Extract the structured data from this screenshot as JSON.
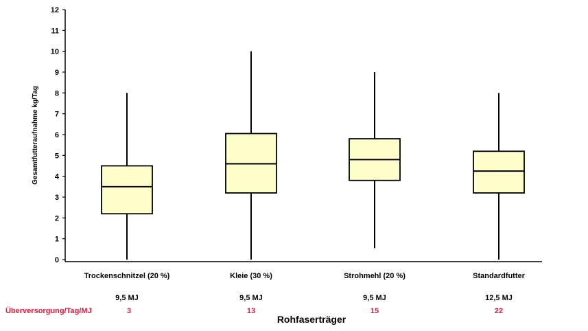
{
  "chart_data": {
    "type": "boxplot",
    "title": "",
    "xlabel": "Rohfaserträger",
    "ylabel": "Gesamtfutteraufnahme kg/Tag",
    "ylim": [
      0,
      12
    ],
    "yticks": [
      0,
      1,
      2,
      3,
      4,
      5,
      6,
      7,
      8,
      9,
      10,
      11,
      12
    ],
    "grid": false,
    "box_color": "#ffffcc",
    "categories": [
      "Trockenschnitzel (20 %)",
      "Kleie (30 %)",
      "Strohmehl (20 %)",
      "Standardfutter"
    ],
    "boxes": [
      {
        "min": 0,
        "q1": 2.2,
        "median": 3.5,
        "q3": 4.5,
        "max": 8
      },
      {
        "min": 0,
        "q1": 3.2,
        "median": 4.6,
        "q3": 6.05,
        "max": 10
      },
      {
        "min": 0.55,
        "q1": 3.8,
        "median": 4.8,
        "q3": 5.8,
        "max": 9
      },
      {
        "min": 0,
        "q1": 3.2,
        "median": 4.25,
        "q3": 5.2,
        "max": 8
      }
    ],
    "energy_labels": [
      "9,5 MJ",
      "9,5 MJ",
      "9,5 MJ",
      "12,5 MJ"
    ],
    "oversupply": {
      "label": "Überversorgung/Tag/MJ",
      "values": [
        "3",
        "13",
        "15",
        "22"
      ],
      "color": "#e8163c"
    }
  }
}
